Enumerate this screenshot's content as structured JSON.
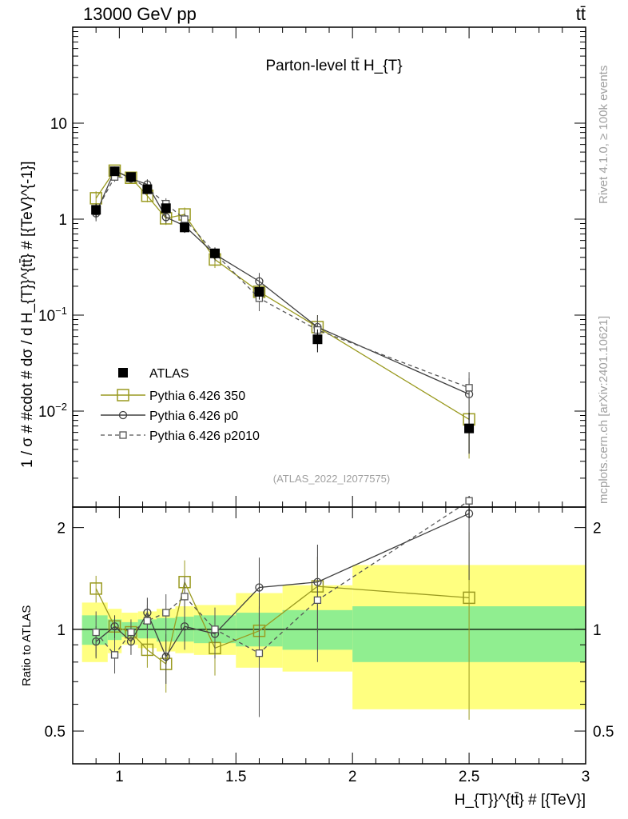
{
  "header": {
    "left": "13000 GeV pp",
    "right": "tt̄"
  },
  "side_text": {
    "rivet": "Rivet 4.1.0, ≥ 100k events",
    "mcplots": "mcplots.cern.ch [arXiv:2401.10621]"
  },
  "colors": {
    "atlas": "#000000",
    "p350": "#9a9a20",
    "p0": "#404040",
    "p2010": "#555555",
    "band_outer": "#ffff80",
    "band_inner": "#90ee90",
    "watermark": "#a0a0a0"
  },
  "chart_data": [
    {
      "type": "line",
      "panel": "main",
      "title": "Parton-level tt̄  H_{T}",
      "ylabel": "1 / σ # #cdot # dσ / d H_{T}}^{tt̄} # [{TeV}^{-1}]",
      "xlabel": "",
      "xlim": [
        0.8,
        3.0
      ],
      "ylim": [
        0.001,
        100
      ],
      "yscale": "log",
      "y_tick_labels": [
        "10^{-2}",
        "10^{-1}",
        "1",
        "10"
      ],
      "watermark": "(ATLAS_2022_I2077575)",
      "x": [
        0.9,
        0.98,
        1.05,
        1.12,
        1.2,
        1.28,
        1.41,
        1.6,
        1.85,
        2.5
      ],
      "series": [
        {
          "name": "ATLAS",
          "values": [
            1.25,
            3.15,
            2.75,
            2.05,
            1.3,
            0.82,
            0.44,
            0.175,
            0.056,
            0.0066
          ],
          "err": [
            0.2,
            0.3,
            0.25,
            0.2,
            0.15,
            0.1,
            0.06,
            0.03,
            0.015,
            0.003
          ],
          "style": "filled-square"
        },
        {
          "name": "Pythia 6.426 350",
          "values": [
            1.65,
            3.2,
            2.7,
            1.75,
            1.02,
            1.12,
            0.38,
            0.175,
            0.075,
            0.0082
          ],
          "err": [
            0.3,
            0.3,
            0.3,
            0.25,
            0.15,
            0.2,
            0.07,
            0.035,
            0.025,
            0.005
          ],
          "style": "open-square-solid"
        },
        {
          "name": "Pythia 6.426 p0",
          "values": [
            1.15,
            3.2,
            2.65,
            2.3,
            1.05,
            0.85,
            0.43,
            0.225,
            0.075,
            0.015
          ],
          "err": [
            0.2,
            0.3,
            0.25,
            0.3,
            0.15,
            0.12,
            0.07,
            0.05,
            0.025,
            0.007
          ],
          "style": "open-circle-solid"
        },
        {
          "name": "Pythia 6.426 p2010",
          "values": [
            1.2,
            2.75,
            2.7,
            2.1,
            1.45,
            1.0,
            0.44,
            0.15,
            0.07,
            0.0175
          ],
          "err": [
            0.2,
            0.3,
            0.25,
            0.25,
            0.2,
            0.15,
            0.07,
            0.04,
            0.025,
            0.008
          ],
          "style": "open-small-square-dashed"
        }
      ]
    },
    {
      "type": "line",
      "panel": "ratio",
      "ylabel": "Ratio to ATLAS",
      "xlabel": "H_{T}}^{tt̄} # [{TeV}]",
      "xlim": [
        0.8,
        3.0
      ],
      "ylim": [
        0.4,
        2.3
      ],
      "x_tick_labels": [
        "1",
        "1.5",
        "2",
        "2.5",
        "3"
      ],
      "y_tick_labels": [
        "0.5",
        "1",
        "2"
      ],
      "x": [
        0.9,
        0.98,
        1.05,
        1.12,
        1.2,
        1.28,
        1.41,
        1.6,
        1.85,
        2.5
      ],
      "bins": [
        [
          0.84,
          0.95
        ],
        [
          0.95,
          1.01
        ],
        [
          1.01,
          1.08
        ],
        [
          1.08,
          1.16
        ],
        [
          1.16,
          1.24
        ],
        [
          1.24,
          1.32
        ],
        [
          1.32,
          1.5
        ],
        [
          1.5,
          1.7
        ],
        [
          1.7,
          2.0
        ],
        [
          2.0,
          3.0
        ]
      ],
      "band_inner": [
        [
          0.9,
          1.1
        ],
        [
          0.93,
          1.07
        ],
        [
          0.95,
          1.05
        ],
        [
          0.94,
          1.07
        ],
        [
          0.92,
          1.08
        ],
        [
          0.92,
          1.09
        ],
        [
          0.91,
          1.1
        ],
        [
          0.89,
          1.12
        ],
        [
          0.87,
          1.14
        ],
        [
          0.8,
          1.17
        ]
      ],
      "band_outer": [
        [
          0.8,
          1.2
        ],
        [
          0.85,
          1.15
        ],
        [
          0.9,
          1.12
        ],
        [
          0.88,
          1.13
        ],
        [
          0.86,
          1.15
        ],
        [
          0.85,
          1.17
        ],
        [
          0.84,
          1.18
        ],
        [
          0.77,
          1.28
        ],
        [
          0.75,
          1.35
        ],
        [
          0.58,
          1.55
        ]
      ],
      "series": [
        {
          "name": "Pythia 6.426 350",
          "values": [
            1.32,
            1.02,
            0.98,
            0.87,
            0.79,
            1.38,
            0.88,
            0.99,
            1.34,
            1.24
          ],
          "err": [
            0.12,
            0.08,
            0.08,
            0.1,
            0.14,
            0.22,
            0.15,
            0.18,
            0.3,
            0.7
          ]
        },
        {
          "name": "Pythia 6.426 p0",
          "values": [
            0.92,
            1.02,
            0.92,
            1.12,
            0.83,
            1.02,
            0.97,
            1.33,
            1.38,
            2.2
          ],
          "err": [
            0.1,
            0.08,
            0.08,
            0.12,
            0.14,
            0.15,
            0.15,
            0.3,
            0.4,
            0.8
          ]
        },
        {
          "name": "Pythia 6.426 p2010",
          "values": [
            0.98,
            0.84,
            0.98,
            1.06,
            1.12,
            1.25,
            1.0,
            0.85,
            1.22,
            2.4
          ],
          "err": [
            0.15,
            0.1,
            0.09,
            0.12,
            0.15,
            0.18,
            0.16,
            0.3,
            0.42,
            0.9
          ]
        }
      ]
    }
  ]
}
